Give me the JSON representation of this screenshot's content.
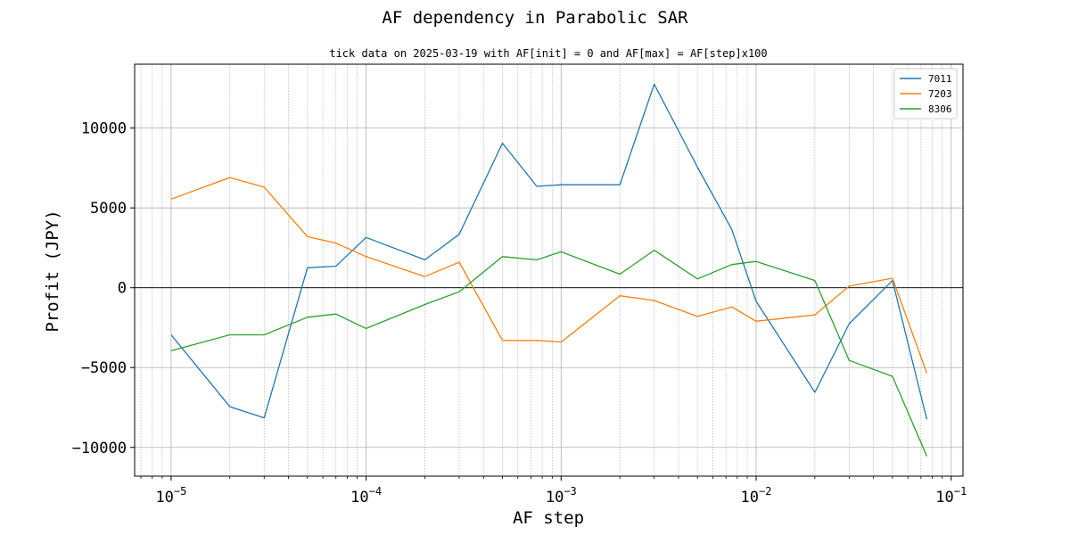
{
  "chart_data": {
    "type": "line",
    "title": "AF dependency in Parabolic SAR",
    "subtitle": "tick data on 2025-03-19 with AF[init] = 0 and AF[max] = AF[step]x100",
    "xlabel": "AF step",
    "ylabel": "Profit (JPY)",
    "xscale": "log",
    "xlim": [
      6.5e-06,
      0.115
    ],
    "ylim": [
      -11800,
      14000
    ],
    "x": [
      1e-05,
      2e-05,
      3e-05,
      5e-05,
      7e-05,
      0.0001,
      0.0002,
      0.0003,
      0.0005,
      0.00075,
      0.001,
      0.002,
      0.003,
      0.005,
      0.0075,
      0.01,
      0.02,
      0.03,
      0.05,
      0.075
    ],
    "series": [
      {
        "name": "7011",
        "color": "#1f77b4",
        "values": [
          -2950,
          -7450,
          -8150,
          1250,
          1350,
          3150,
          1750,
          3350,
          9050,
          6350,
          6450,
          6450,
          12750,
          7550,
          3650,
          -850,
          -6550,
          -2250,
          450,
          -8250
        ]
      },
      {
        "name": "7203",
        "color": "#ff7f0e",
        "values": [
          5550,
          6900,
          6300,
          3200,
          2800,
          1950,
          700,
          1600,
          -3300,
          -3300,
          -3400,
          -500,
          -800,
          -1800,
          -1200,
          -2100,
          -1700,
          100,
          600,
          -5350
        ]
      },
      {
        "name": "8306",
        "color": "#2ca02c",
        "values": [
          -3950,
          -2950,
          -2950,
          -1850,
          -1650,
          -2550,
          -1050,
          -250,
          1950,
          1750,
          2250,
          850,
          2350,
          550,
          1450,
          1650,
          450,
          -4550,
          -5550,
          -10550
        ]
      }
    ],
    "yticks": [
      10000,
      5000,
      0,
      -5000,
      -10000
    ],
    "ytick_labels": [
      "10000",
      "5000",
      "0",
      "−5000",
      "−10000"
    ],
    "xticks": [
      1e-05,
      0.0001,
      0.001,
      0.01,
      0.1
    ],
    "xtick_base": "10",
    "xtick_exponents": [
      "−5",
      "−4",
      "−3",
      "−2",
      "−1"
    ],
    "grid": true,
    "legend_position": "top-right"
  }
}
